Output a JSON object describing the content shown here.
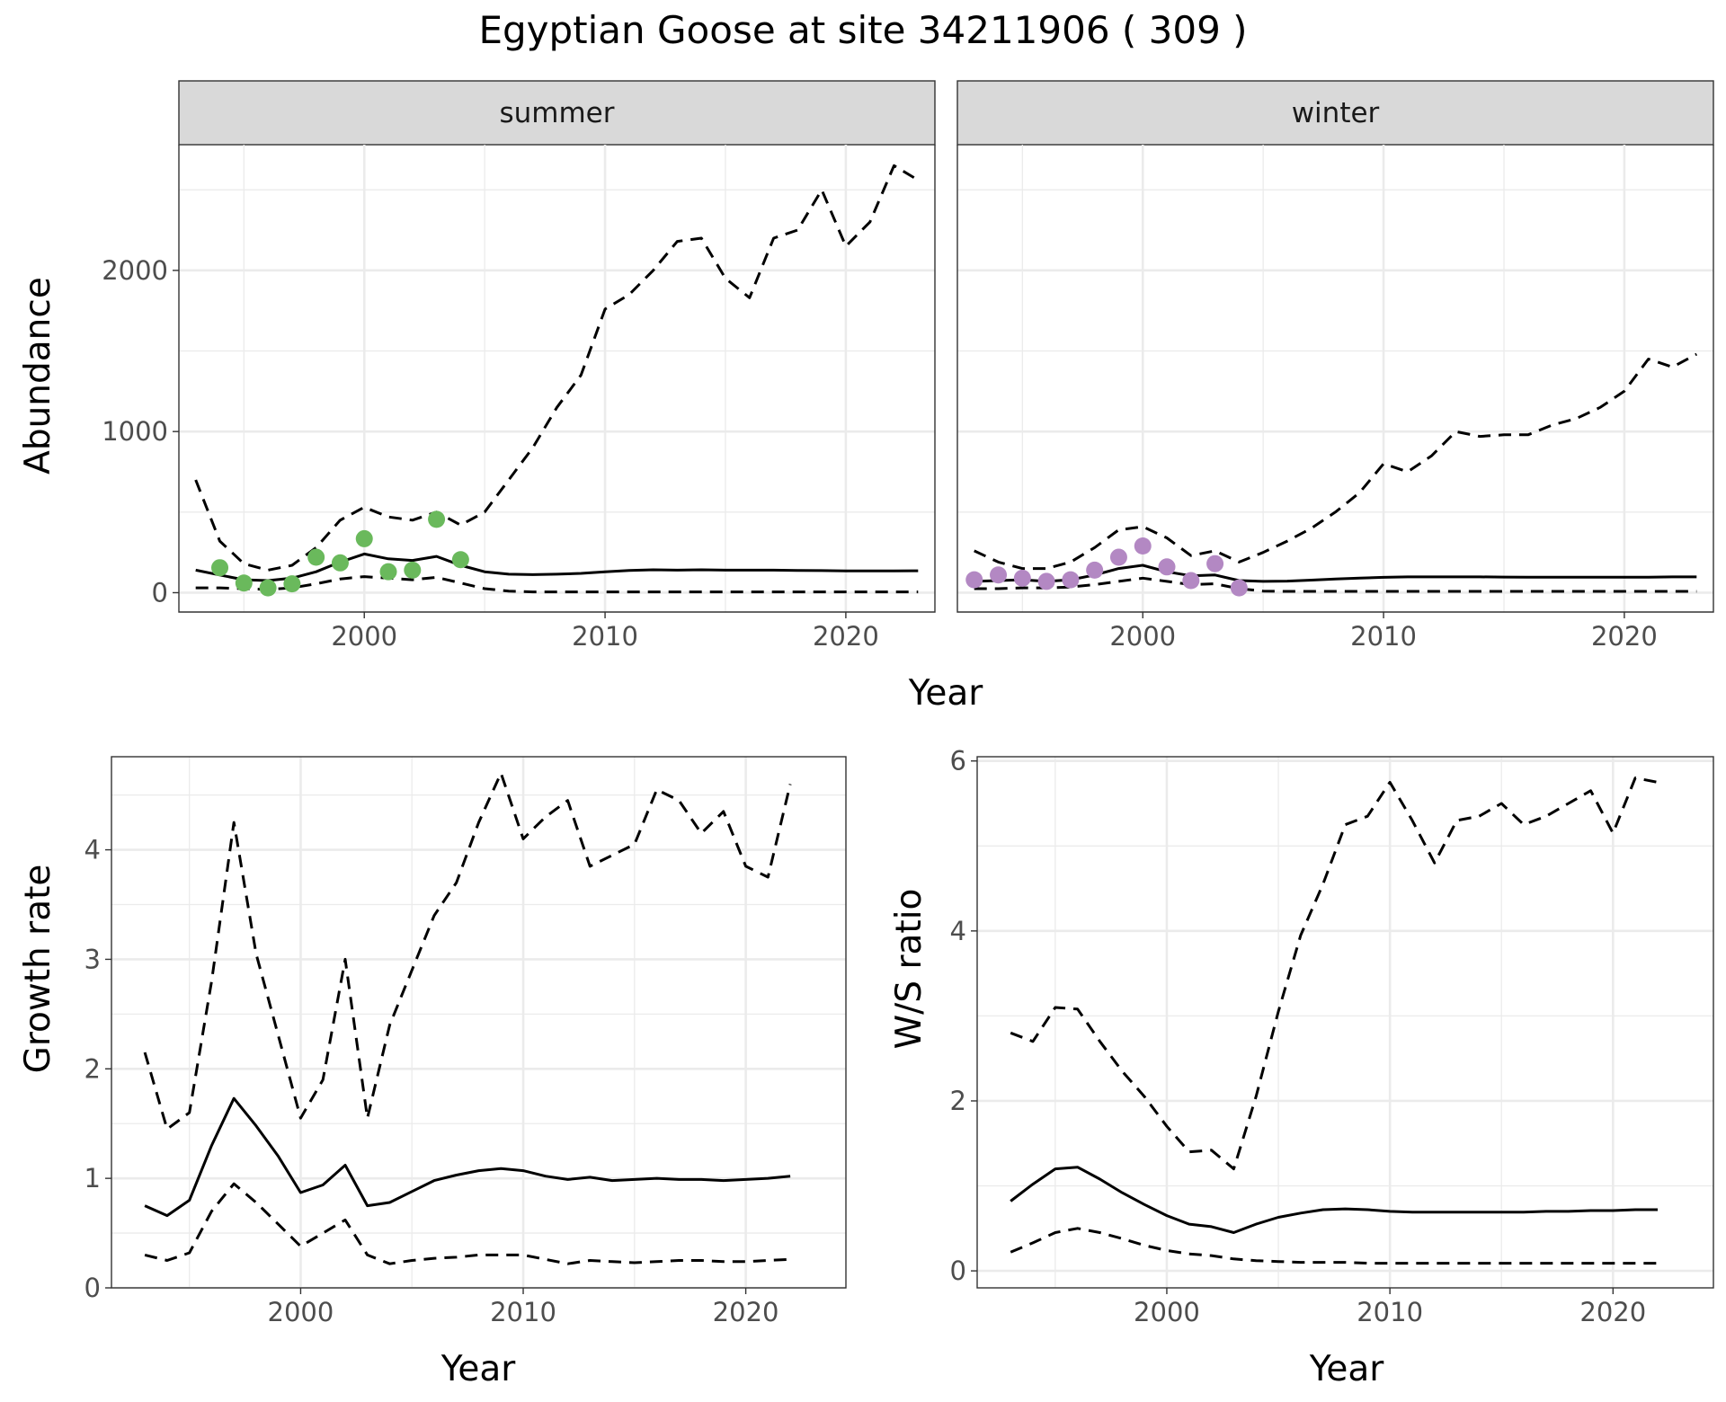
{
  "figure": {
    "title": "Egyptian Goose at site 34211906 ( 309 )"
  },
  "colors": {
    "summer_points": "#6ab95c",
    "winter_points": "#b388c3",
    "lines": "#000000",
    "strip_background": "#d9d9d9"
  },
  "chart_data": [
    {
      "id": "abundance",
      "type": "line",
      "facets": [
        "summer",
        "winter"
      ],
      "xlabel": "Year",
      "ylabel": "Abundance",
      "xlim": [
        1992.3,
        2023.7
      ],
      "ylim": [
        -120,
        2780
      ],
      "x_ticks": [
        2000,
        2010,
        2020
      ],
      "y_ticks": [
        0,
        1000,
        2000
      ],
      "grid": true,
      "series": [
        {
          "facet": "summer",
          "role": "estimate",
          "x": [
            1993,
            1994,
            1995,
            1996,
            1997,
            1998,
            1999,
            2000,
            2001,
            2002,
            2003,
            2004,
            2005,
            2006,
            2007,
            2008,
            2009,
            2010,
            2011,
            2012,
            2013,
            2014,
            2015,
            2016,
            2017,
            2018,
            2019,
            2020,
            2021,
            2022,
            2023
          ],
          "y": [
            140,
            110,
            80,
            75,
            90,
            130,
            190,
            240,
            210,
            200,
            225,
            170,
            130,
            115,
            112,
            115,
            120,
            130,
            138,
            142,
            140,
            142,
            140,
            140,
            140,
            138,
            137,
            135,
            135,
            135,
            136
          ]
        },
        {
          "facet": "summer",
          "role": "upper",
          "x": [
            1993,
            1994,
            1995,
            1996,
            1997,
            1998,
            1999,
            2000,
            2001,
            2002,
            2003,
            2004,
            2005,
            2006,
            2007,
            2008,
            2009,
            2010,
            2011,
            2012,
            2013,
            2014,
            2015,
            2016,
            2017,
            2018,
            2019,
            2020,
            2021,
            2022,
            2023
          ],
          "y": [
            700,
            320,
            180,
            140,
            170,
            280,
            450,
            530,
            470,
            450,
            500,
            420,
            500,
            700,
            900,
            1150,
            1350,
            1760,
            1850,
            2000,
            2180,
            2200,
            1950,
            1830,
            2200,
            2250,
            2500,
            2150,
            2300,
            2650,
            2560
          ]
        },
        {
          "facet": "summer",
          "role": "lower",
          "x": [
            1993,
            1994,
            1995,
            1996,
            1997,
            1998,
            1999,
            2000,
            2001,
            2002,
            2003,
            2004,
            2005,
            2006,
            2007,
            2008,
            2009,
            2010,
            2011,
            2012,
            2013,
            2014,
            2015,
            2016,
            2017,
            2018,
            2019,
            2020,
            2021,
            2022,
            2023
          ],
          "y": [
            30,
            30,
            25,
            20,
            30,
            55,
            85,
            100,
            90,
            80,
            95,
            60,
            25,
            10,
            5,
            5,
            5,
            5,
            5,
            5,
            5,
            5,
            5,
            5,
            5,
            5,
            5,
            5,
            5,
            5,
            5
          ]
        },
        {
          "facet": "summer",
          "role": "observed",
          "x": [
            1994,
            1995,
            1996,
            1997,
            1998,
            1999,
            2000,
            2001,
            2002,
            2003,
            2004
          ],
          "y": [
            155,
            60,
            30,
            55,
            220,
            185,
            335,
            130,
            140,
            455,
            205
          ]
        },
        {
          "facet": "winter",
          "role": "estimate",
          "x": [
            1993,
            1994,
            1995,
            1996,
            1997,
            1998,
            1999,
            2000,
            2001,
            2002,
            2003,
            2004,
            2005,
            2006,
            2007,
            2008,
            2009,
            2010,
            2011,
            2012,
            2013,
            2014,
            2015,
            2016,
            2017,
            2018,
            2019,
            2020,
            2021,
            2022,
            2023
          ],
          "y": [
            70,
            75,
            80,
            70,
            80,
            110,
            150,
            170,
            130,
            105,
            110,
            75,
            70,
            72,
            78,
            85,
            90,
            95,
            98,
            98,
            98,
            98,
            97,
            96,
            96,
            96,
            96,
            96,
            96,
            98,
            98
          ]
        },
        {
          "facet": "winter",
          "role": "upper",
          "x": [
            1993,
            1994,
            1995,
            1996,
            1997,
            1998,
            1999,
            2000,
            2001,
            2002,
            2003,
            2004,
            2005,
            2006,
            2007,
            2008,
            2009,
            2010,
            2011,
            2012,
            2013,
            2014,
            2015,
            2016,
            2017,
            2018,
            2019,
            2020,
            2021,
            2022,
            2023
          ],
          "y": [
            260,
            190,
            150,
            150,
            190,
            280,
            390,
            410,
            340,
            230,
            260,
            190,
            250,
            320,
            400,
            500,
            620,
            800,
            750,
            850,
            1000,
            970,
            980,
            980,
            1040,
            1080,
            1150,
            1250,
            1450,
            1400,
            1480
          ]
        },
        {
          "facet": "winter",
          "role": "lower",
          "x": [
            1993,
            1994,
            1995,
            1996,
            1997,
            1998,
            1999,
            2000,
            2001,
            2002,
            2003,
            2004,
            2005,
            2006,
            2007,
            2008,
            2009,
            2010,
            2011,
            2012,
            2013,
            2014,
            2015,
            2016,
            2017,
            2018,
            2019,
            2020,
            2021,
            2022,
            2023
          ],
          "y": [
            25,
            25,
            30,
            30,
            35,
            50,
            70,
            90,
            70,
            50,
            55,
            25,
            10,
            8,
            8,
            8,
            8,
            8,
            8,
            8,
            8,
            8,
            8,
            8,
            8,
            8,
            8,
            8,
            8,
            8,
            8
          ]
        },
        {
          "facet": "winter",
          "role": "observed",
          "x": [
            1993,
            1994,
            1995,
            1996,
            1997,
            1998,
            1999,
            2000,
            2001,
            2002,
            2003,
            2004
          ],
          "y": [
            80,
            110,
            90,
            70,
            80,
            140,
            220,
            290,
            160,
            75,
            180,
            30
          ]
        }
      ]
    },
    {
      "id": "growth",
      "type": "line",
      "xlabel": "Year",
      "ylabel": "Growth rate",
      "xlim": [
        1991.5,
        2024.5
      ],
      "ylim": [
        0,
        4.85
      ],
      "x_ticks": [
        2000,
        2010,
        2020
      ],
      "y_ticks": [
        0,
        1,
        2,
        3,
        4
      ],
      "grid": true,
      "series": [
        {
          "role": "estimate",
          "x": [
            1993,
            1994,
            1995,
            1996,
            1997,
            1998,
            1999,
            2000,
            2001,
            2002,
            2003,
            2004,
            2005,
            2006,
            2007,
            2008,
            2009,
            2010,
            2011,
            2012,
            2013,
            2014,
            2015,
            2016,
            2017,
            2018,
            2019,
            2020,
            2021,
            2022
          ],
          "y": [
            0.75,
            0.66,
            0.8,
            1.3,
            1.73,
            1.48,
            1.2,
            0.87,
            0.94,
            1.12,
            0.75,
            0.78,
            0.88,
            0.98,
            1.03,
            1.07,
            1.09,
            1.07,
            1.02,
            0.99,
            1.01,
            0.98,
            0.99,
            1.0,
            0.99,
            0.99,
            0.98,
            0.99,
            1.0,
            1.02
          ]
        },
        {
          "role": "upper",
          "x": [
            1993,
            1994,
            1995,
            1996,
            1997,
            1998,
            1999,
            2000,
            2001,
            2002,
            2003,
            2004,
            2005,
            2006,
            2007,
            2008,
            2009,
            2010,
            2011,
            2012,
            2013,
            2014,
            2015,
            2016,
            2017,
            2018,
            2019,
            2020,
            2021,
            2022
          ],
          "y": [
            2.15,
            1.45,
            1.6,
            2.8,
            4.25,
            3.05,
            2.3,
            1.55,
            1.9,
            3.0,
            1.55,
            2.4,
            2.9,
            3.4,
            3.7,
            4.25,
            4.7,
            4.1,
            4.3,
            4.45,
            3.85,
            3.95,
            4.05,
            4.55,
            4.45,
            4.15,
            4.35,
            3.85,
            3.75,
            4.6
          ]
        },
        {
          "role": "lower",
          "x": [
            1993,
            1994,
            1995,
            1996,
            1997,
            1998,
            1999,
            2000,
            2001,
            2002,
            2003,
            2004,
            2005,
            2006,
            2007,
            2008,
            2009,
            2010,
            2011,
            2012,
            2013,
            2014,
            2015,
            2016,
            2017,
            2018,
            2019,
            2020,
            2021,
            2022
          ],
          "y": [
            0.3,
            0.25,
            0.32,
            0.7,
            0.95,
            0.78,
            0.58,
            0.38,
            0.5,
            0.62,
            0.3,
            0.22,
            0.25,
            0.27,
            0.28,
            0.3,
            0.3,
            0.3,
            0.26,
            0.22,
            0.25,
            0.24,
            0.23,
            0.24,
            0.25,
            0.25,
            0.24,
            0.24,
            0.25,
            0.26
          ]
        }
      ]
    },
    {
      "id": "ratio",
      "type": "line",
      "xlabel": "Year",
      "ylabel": "W/S ratio",
      "xlim": [
        1991.5,
        2024.5
      ],
      "ylim": [
        -0.2,
        6.05
      ],
      "x_ticks": [
        2000,
        2010,
        2020
      ],
      "y_ticks": [
        0,
        2,
        4,
        6
      ],
      "grid": true,
      "series": [
        {
          "role": "estimate",
          "x": [
            1993,
            1994,
            1995,
            1996,
            1997,
            1998,
            1999,
            2000,
            2001,
            2002,
            2003,
            2004,
            2005,
            2006,
            2007,
            2008,
            2009,
            2010,
            2011,
            2012,
            2013,
            2014,
            2015,
            2016,
            2017,
            2018,
            2019,
            2020,
            2021,
            2022
          ],
          "y": [
            0.82,
            1.02,
            1.2,
            1.22,
            1.08,
            0.92,
            0.78,
            0.65,
            0.55,
            0.52,
            0.45,
            0.55,
            0.63,
            0.68,
            0.72,
            0.73,
            0.72,
            0.7,
            0.69,
            0.69,
            0.69,
            0.69,
            0.69,
            0.69,
            0.7,
            0.7,
            0.71,
            0.71,
            0.72,
            0.72
          ]
        },
        {
          "role": "upper",
          "x": [
            1993,
            1994,
            1995,
            1996,
            1997,
            1998,
            1999,
            2000,
            2001,
            2002,
            2003,
            2004,
            2005,
            2006,
            2007,
            2008,
            2009,
            2010,
            2011,
            2012,
            2013,
            2014,
            2015,
            2016,
            2017,
            2018,
            2019,
            2020,
            2021,
            2022
          ],
          "y": [
            2.8,
            2.7,
            3.1,
            3.08,
            2.7,
            2.35,
            2.05,
            1.7,
            1.4,
            1.42,
            1.2,
            2.05,
            3.05,
            3.95,
            4.55,
            5.25,
            5.35,
            5.75,
            5.3,
            4.8,
            5.3,
            5.35,
            5.5,
            5.25,
            5.35,
            5.5,
            5.65,
            5.15,
            5.8,
            5.75
          ]
        },
        {
          "role": "lower",
          "x": [
            1993,
            1994,
            1995,
            1996,
            1997,
            1998,
            1999,
            2000,
            2001,
            2002,
            2003,
            2004,
            2005,
            2006,
            2007,
            2008,
            2009,
            2010,
            2011,
            2012,
            2013,
            2014,
            2015,
            2016,
            2017,
            2018,
            2019,
            2020,
            2021,
            2022
          ],
          "y": [
            0.22,
            0.33,
            0.45,
            0.5,
            0.45,
            0.38,
            0.3,
            0.24,
            0.2,
            0.18,
            0.14,
            0.12,
            0.11,
            0.1,
            0.1,
            0.1,
            0.09,
            0.09,
            0.09,
            0.09,
            0.09,
            0.09,
            0.09,
            0.09,
            0.09,
            0.09,
            0.09,
            0.09,
            0.09,
            0.09
          ]
        }
      ]
    }
  ]
}
